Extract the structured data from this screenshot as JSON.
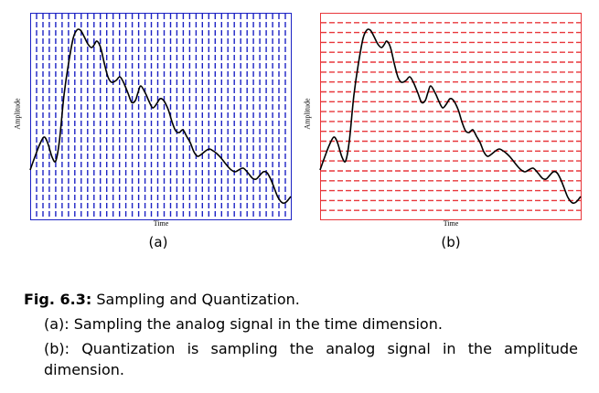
{
  "figure": {
    "panel_a": {
      "ylabel": "Amplitude",
      "xlabel": "Time",
      "label": "(a)",
      "grid_color": "#1c22c4"
    },
    "panel_b": {
      "ylabel": "Amplitude",
      "xlabel": "Time",
      "label": "(b)",
      "grid_color": "#e8373b"
    },
    "signal_color": "#000000"
  },
  "caption": {
    "fig_number": "Fig. 6.3:",
    "title": " Sampling and Quantization.",
    "item_a": "(a): Sampling the analog signal in the time dimension.",
    "item_b": "(b): Quantization is sampling the analog signal in the amplitude dimension."
  }
}
